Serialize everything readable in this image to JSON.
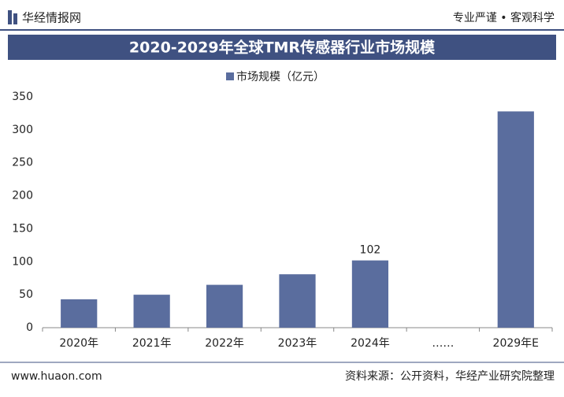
{
  "header": {
    "logo": "华经情报网",
    "slogan": "专业严谨 • 客观科学"
  },
  "footer": {
    "website": "www.huaon.com",
    "source": "资料来源：公开资料，华经产业研究院整理"
  },
  "chart_data": {
    "type": "bar",
    "title": "2020-2029年全球TMR传感器行业市场规模",
    "categories": [
      "2020年",
      "2021年",
      "2022年",
      "2023年",
      "2024年",
      "……",
      "2029年E"
    ],
    "series": [
      {
        "name": "市场规模（亿元）",
        "color": "#5a6d9e",
        "values": [
          43,
          50,
          65,
          81,
          102,
          null,
          328
        ],
        "value_labels": [
          null,
          null,
          null,
          null,
          "102",
          null,
          null
        ]
      }
    ],
    "ylim": [
      0,
      350
    ],
    "yticks": [
      0,
      50,
      100,
      150,
      200,
      250,
      300,
      350
    ],
    "grid": false
  }
}
